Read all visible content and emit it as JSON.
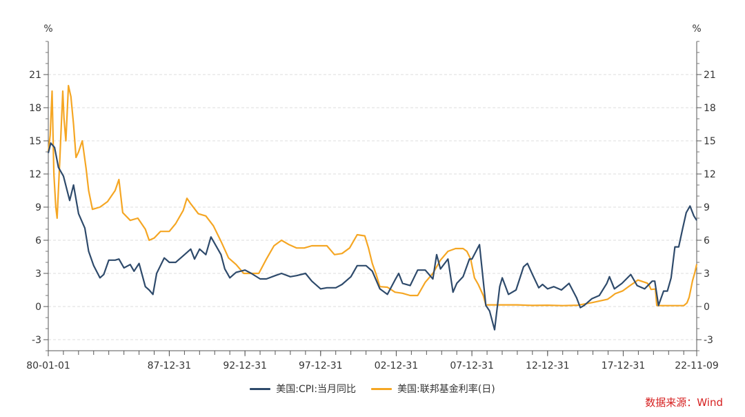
{
  "chart_data": {
    "type": "line",
    "ylabel_left": "%",
    "ylabel_right": "%",
    "ylim": [
      -4,
      24
    ],
    "yticks": [
      -3,
      0,
      3,
      6,
      9,
      12,
      15,
      18,
      21
    ],
    "xlim": [
      "1980-01-01",
      "2022-11-09"
    ],
    "xtick_labels": [
      {
        "date": "1980-01-01",
        "label": "80-01-01"
      },
      {
        "date": "1987-12-31",
        "label": "87-12-31"
      },
      {
        "date": "1992-12-31",
        "label": "92-12-31"
      },
      {
        "date": "1997-12-31",
        "label": "97-12-31"
      },
      {
        "date": "2002-12-31",
        "label": "02-12-31"
      },
      {
        "date": "2007-12-31",
        "label": "07-12-31"
      },
      {
        "date": "2012-12-31",
        "label": "12-12-31"
      },
      {
        "date": "2017-12-31",
        "label": "17-12-31"
      },
      {
        "date": "2022-11-09",
        "label": "22-11-09"
      }
    ],
    "grid": "horizontal-dashed",
    "legend_position": "bottom-center",
    "series": [
      {
        "name": "美国:CPI:当月同比",
        "color": "#2e4a6b",
        "points": [
          [
            "1980-01-01",
            13.9
          ],
          [
            "1980-03-01",
            14.8
          ],
          [
            "1980-06-01",
            14.4
          ],
          [
            "1980-09-01",
            12.6
          ],
          [
            "1981-01-01",
            11.8
          ],
          [
            "1981-06-01",
            9.6
          ],
          [
            "1981-09-01",
            11.0
          ],
          [
            "1982-01-01",
            8.4
          ],
          [
            "1982-06-01",
            7.1
          ],
          [
            "1982-09-01",
            5.0
          ],
          [
            "1983-01-01",
            3.7
          ],
          [
            "1983-06-01",
            2.6
          ],
          [
            "1983-09-01",
            2.9
          ],
          [
            "1984-01-01",
            4.2
          ],
          [
            "1984-06-01",
            4.2
          ],
          [
            "1984-09-01",
            4.3
          ],
          [
            "1985-01-01",
            3.5
          ],
          [
            "1985-06-01",
            3.8
          ],
          [
            "1985-09-01",
            3.2
          ],
          [
            "1986-01-01",
            3.9
          ],
          [
            "1986-06-01",
            1.8
          ],
          [
            "1986-09-01",
            1.5
          ],
          [
            "1986-12-01",
            1.1
          ],
          [
            "1987-03-01",
            3.0
          ],
          [
            "1987-06-01",
            3.7
          ],
          [
            "1987-09-01",
            4.4
          ],
          [
            "1988-01-01",
            4.0
          ],
          [
            "1988-06-01",
            4.0
          ],
          [
            "1989-01-01",
            4.7
          ],
          [
            "1989-06-01",
            5.2
          ],
          [
            "1989-09-01",
            4.3
          ],
          [
            "1990-01-01",
            5.2
          ],
          [
            "1990-06-01",
            4.7
          ],
          [
            "1990-10-01",
            6.3
          ],
          [
            "1991-01-01",
            5.7
          ],
          [
            "1991-06-01",
            4.7
          ],
          [
            "1991-09-01",
            3.4
          ],
          [
            "1992-01-01",
            2.6
          ],
          [
            "1992-06-01",
            3.1
          ],
          [
            "1993-01-01",
            3.3
          ],
          [
            "1993-06-01",
            3.0
          ],
          [
            "1994-01-01",
            2.5
          ],
          [
            "1994-06-01",
            2.5
          ],
          [
            "1995-01-01",
            2.8
          ],
          [
            "1995-06-01",
            3.0
          ],
          [
            "1996-01-01",
            2.7
          ],
          [
            "1996-06-01",
            2.8
          ],
          [
            "1997-01-01",
            3.0
          ],
          [
            "1997-06-01",
            2.3
          ],
          [
            "1998-01-01",
            1.6
          ],
          [
            "1998-06-01",
            1.7
          ],
          [
            "1999-01-01",
            1.7
          ],
          [
            "1999-06-01",
            2.0
          ],
          [
            "2000-01-01",
            2.7
          ],
          [
            "2000-06-01",
            3.7
          ],
          [
            "2001-01-01",
            3.7
          ],
          [
            "2001-06-01",
            3.2
          ],
          [
            "2001-12-01",
            1.6
          ],
          [
            "2002-06-01",
            1.1
          ],
          [
            "2002-12-01",
            2.4
          ],
          [
            "2003-03-01",
            3.0
          ],
          [
            "2003-06-01",
            2.1
          ],
          [
            "2003-12-01",
            1.9
          ],
          [
            "2004-06-01",
            3.3
          ],
          [
            "2004-12-01",
            3.3
          ],
          [
            "2005-06-01",
            2.5
          ],
          [
            "2005-09-01",
            4.7
          ],
          [
            "2005-12-01",
            3.4
          ],
          [
            "2006-06-01",
            4.3
          ],
          [
            "2006-10-01",
            1.3
          ],
          [
            "2007-01-01",
            2.1
          ],
          [
            "2007-06-01",
            2.7
          ],
          [
            "2007-11-01",
            4.3
          ],
          [
            "2008-01-01",
            4.3
          ],
          [
            "2008-07-01",
            5.6
          ],
          [
            "2008-12-01",
            0.1
          ],
          [
            "2009-03-01",
            -0.4
          ],
          [
            "2009-07-01",
            -2.1
          ],
          [
            "2009-11-01",
            1.8
          ],
          [
            "2010-01-01",
            2.6
          ],
          [
            "2010-06-01",
            1.1
          ],
          [
            "2010-12-01",
            1.5
          ],
          [
            "2011-06-01",
            3.6
          ],
          [
            "2011-09-01",
            3.9
          ],
          [
            "2012-01-01",
            2.9
          ],
          [
            "2012-06-01",
            1.7
          ],
          [
            "2012-09-01",
            2.0
          ],
          [
            "2013-01-01",
            1.6
          ],
          [
            "2013-06-01",
            1.8
          ],
          [
            "2013-12-01",
            1.5
          ],
          [
            "2014-06-01",
            2.1
          ],
          [
            "2014-12-01",
            0.8
          ],
          [
            "2015-03-01",
            -0.1
          ],
          [
            "2015-06-01",
            0.1
          ],
          [
            "2015-12-01",
            0.7
          ],
          [
            "2016-06-01",
            1.0
          ],
          [
            "2016-12-01",
            2.1
          ],
          [
            "2017-02-01",
            2.7
          ],
          [
            "2017-06-01",
            1.6
          ],
          [
            "2017-12-01",
            2.1
          ],
          [
            "2018-07-01",
            2.9
          ],
          [
            "2018-12-01",
            1.9
          ],
          [
            "2019-06-01",
            1.6
          ],
          [
            "2019-12-01",
            2.3
          ],
          [
            "2020-02-01",
            2.3
          ],
          [
            "2020-05-01",
            0.1
          ],
          [
            "2020-09-01",
            1.4
          ],
          [
            "2020-12-01",
            1.4
          ],
          [
            "2021-03-01",
            2.6
          ],
          [
            "2021-06-01",
            5.4
          ],
          [
            "2021-09-01",
            5.4
          ],
          [
            "2021-12-01",
            7.0
          ],
          [
            "2022-03-01",
            8.5
          ],
          [
            "2022-06-01",
            9.1
          ],
          [
            "2022-09-01",
            8.2
          ],
          [
            "2022-11-09",
            7.8
          ]
        ]
      },
      {
        "name": "美国:联邦基金利率(日)",
        "color": "#f5a623",
        "points": [
          [
            "1980-01-01",
            14.0
          ],
          [
            "1980-02-15",
            15.5
          ],
          [
            "1980-04-01",
            19.5
          ],
          [
            "1980-05-15",
            12.0
          ],
          [
            "1980-07-01",
            9.0
          ],
          [
            "1980-08-01",
            8.0
          ],
          [
            "1980-10-01",
            13.0
          ],
          [
            "1980-12-15",
            19.5
          ],
          [
            "1981-01-15",
            17.0
          ],
          [
            "1981-03-01",
            15.0
          ],
          [
            "1981-05-01",
            20.0
          ],
          [
            "1981-07-01",
            19.0
          ],
          [
            "1981-09-01",
            16.5
          ],
          [
            "1981-11-01",
            13.5
          ],
          [
            "1982-01-01",
            14.0
          ],
          [
            "1982-04-01",
            15.0
          ],
          [
            "1982-07-01",
            12.5
          ],
          [
            "1982-09-01",
            10.5
          ],
          [
            "1982-12-01",
            8.8
          ],
          [
            "1983-06-01",
            9.0
          ],
          [
            "1983-12-01",
            9.5
          ],
          [
            "1984-06-01",
            10.5
          ],
          [
            "1984-09-01",
            11.5
          ],
          [
            "1984-12-01",
            8.5
          ],
          [
            "1985-06-01",
            7.8
          ],
          [
            "1985-12-01",
            8.0
          ],
          [
            "1986-06-01",
            7.0
          ],
          [
            "1986-09-01",
            6.0
          ],
          [
            "1987-01-01",
            6.2
          ],
          [
            "1987-06-01",
            6.8
          ],
          [
            "1987-12-31",
            6.8
          ],
          [
            "1988-06-01",
            7.5
          ],
          [
            "1988-12-01",
            8.7
          ],
          [
            "1989-03-01",
            9.8
          ],
          [
            "1989-06-01",
            9.3
          ],
          [
            "1989-12-01",
            8.4
          ],
          [
            "1990-06-01",
            8.2
          ],
          [
            "1990-12-01",
            7.3
          ],
          [
            "1991-06-01",
            5.9
          ],
          [
            "1991-12-01",
            4.4
          ],
          [
            "1992-06-01",
            3.8
          ],
          [
            "1992-12-01",
            3.0
          ],
          [
            "1993-06-01",
            3.0
          ],
          [
            "1993-12-01",
            3.0
          ],
          [
            "1994-06-01",
            4.3
          ],
          [
            "1994-12-01",
            5.5
          ],
          [
            "1995-06-01",
            6.0
          ],
          [
            "1995-12-01",
            5.6
          ],
          [
            "1996-06-01",
            5.3
          ],
          [
            "1996-12-01",
            5.3
          ],
          [
            "1997-06-01",
            5.5
          ],
          [
            "1997-12-01",
            5.5
          ],
          [
            "1998-06-01",
            5.5
          ],
          [
            "1998-12-01",
            4.7
          ],
          [
            "1999-06-01",
            4.8
          ],
          [
            "1999-12-01",
            5.3
          ],
          [
            "2000-06-01",
            6.5
          ],
          [
            "2000-12-01",
            6.4
          ],
          [
            "2001-03-01",
            5.3
          ],
          [
            "2001-06-01",
            3.9
          ],
          [
            "2001-09-01",
            2.9
          ],
          [
            "2001-12-01",
            1.8
          ],
          [
            "2002-06-01",
            1.75
          ],
          [
            "2002-12-01",
            1.3
          ],
          [
            "2003-06-01",
            1.2
          ],
          [
            "2003-12-01",
            1.0
          ],
          [
            "2004-06-01",
            1.0
          ],
          [
            "2004-12-01",
            2.2
          ],
          [
            "2005-06-01",
            3.0
          ],
          [
            "2005-12-01",
            4.2
          ],
          [
            "2006-06-01",
            5.0
          ],
          [
            "2006-12-01",
            5.25
          ],
          [
            "2007-06-01",
            5.25
          ],
          [
            "2007-09-01",
            5.0
          ],
          [
            "2007-12-01",
            4.3
          ],
          [
            "2008-03-01",
            2.6
          ],
          [
            "2008-06-01",
            2.0
          ],
          [
            "2008-10-01",
            1.0
          ],
          [
            "2008-12-01",
            0.15
          ],
          [
            "2010-01-01",
            0.15
          ],
          [
            "2011-01-01",
            0.15
          ],
          [
            "2012-01-01",
            0.1
          ],
          [
            "2013-01-01",
            0.12
          ],
          [
            "2014-01-01",
            0.08
          ],
          [
            "2015-01-01",
            0.12
          ],
          [
            "2015-12-20",
            0.36
          ],
          [
            "2016-12-20",
            0.66
          ],
          [
            "2017-03-20",
            0.9
          ],
          [
            "2017-06-20",
            1.16
          ],
          [
            "2017-12-20",
            1.42
          ],
          [
            "2018-03-25",
            1.68
          ],
          [
            "2018-06-20",
            1.91
          ],
          [
            "2018-09-30",
            2.18
          ],
          [
            "2018-12-20",
            2.4
          ],
          [
            "2019-08-01",
            2.12
          ],
          [
            "2019-09-20",
            1.9
          ],
          [
            "2019-11-01",
            1.55
          ],
          [
            "2020-02-15",
            1.58
          ],
          [
            "2020-03-20",
            0.1
          ],
          [
            "2020-06-01",
            0.08
          ],
          [
            "2021-06-01",
            0.08
          ],
          [
            "2022-01-01",
            0.08
          ],
          [
            "2022-03-20",
            0.33
          ],
          [
            "2022-05-10",
            0.83
          ],
          [
            "2022-06-20",
            1.58
          ],
          [
            "2022-07-30",
            2.33
          ],
          [
            "2022-09-25",
            3.08
          ],
          [
            "2022-11-09",
            3.83
          ]
        ]
      }
    ]
  },
  "source_text": "数据来源：Wind"
}
